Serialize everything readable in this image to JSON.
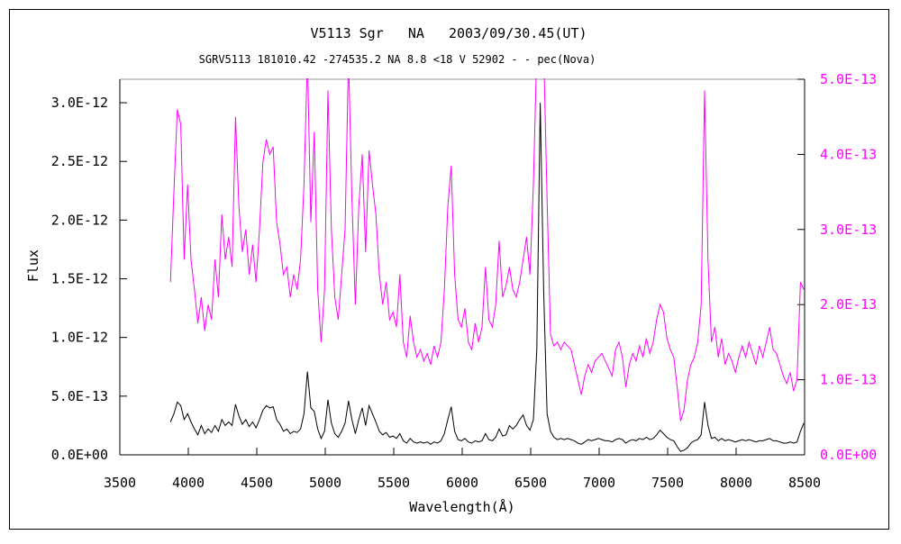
{
  "chart_data": {
    "type": "line",
    "title": "V5113 Sgr   NA   2003/09/30.45(UT)",
    "subtitle": "SGRV5113 181010.42 -274535.2 NA 8.8 <18 V 52902 - - pec(Nova)",
    "xlabel": "Wavelength(Å)",
    "ylabel_left": "Flux",
    "legend": "none",
    "grid": false,
    "x_axis": {
      "min": 3500,
      "max": 8500,
      "ticks": [
        {
          "label": "3500",
          "value": 3500
        },
        {
          "label": "4000",
          "value": 4000
        },
        {
          "label": "4500",
          "value": 4500
        },
        {
          "label": "5000",
          "value": 5000
        },
        {
          "label": "5500",
          "value": 5500
        },
        {
          "label": "6000",
          "value": 6000
        },
        {
          "label": "6500",
          "value": 6500
        },
        {
          "label": "7000",
          "value": 7000
        },
        {
          "label": "7500",
          "value": 7500
        },
        {
          "label": "8000",
          "value": 8000
        },
        {
          "label": "8500",
          "value": 8500
        }
      ]
    },
    "y_axis_left": {
      "min": 0,
      "max": 3.2e-12,
      "color": "#000000",
      "ticks": [
        {
          "label": "0.0E+00",
          "value": 0
        },
        {
          "label": "5.0E-13",
          "value": 5e-13
        },
        {
          "label": "1.0E-12",
          "value": 1e-12
        },
        {
          "label": "1.5E-12",
          "value": 1.5e-12
        },
        {
          "label": "2.0E-12",
          "value": 2e-12
        },
        {
          "label": "2.5E-12",
          "value": 2.5e-12
        },
        {
          "label": "3.0E-12",
          "value": 3e-12
        }
      ]
    },
    "y_axis_right": {
      "min": 0,
      "max": 5e-13,
      "color": "#ff00ff",
      "ticks": [
        {
          "label": "0.0E+00",
          "value": 0
        },
        {
          "label": "1.0E-13",
          "value": 1e-13
        },
        {
          "label": "2.0E-13",
          "value": 2e-13
        },
        {
          "label": "3.0E-13",
          "value": 3e-13
        },
        {
          "label": "4.0E-13",
          "value": 4e-13
        },
        {
          "label": "5.0E-13",
          "value": 5e-13
        }
      ]
    },
    "series": [
      {
        "name": "black",
        "axis": "left",
        "color": "#000000",
        "x_start": 3870,
        "x_step": 25,
        "value_scale": 1e-12,
        "values": [
          0.28,
          0.35,
          0.45,
          0.42,
          0.3,
          0.35,
          0.28,
          0.22,
          0.17,
          0.25,
          0.18,
          0.22,
          0.19,
          0.25,
          0.2,
          0.3,
          0.25,
          0.28,
          0.25,
          0.43,
          0.33,
          0.26,
          0.3,
          0.24,
          0.28,
          0.23,
          0.3,
          0.38,
          0.42,
          0.4,
          0.41,
          0.3,
          0.26,
          0.2,
          0.22,
          0.18,
          0.2,
          0.19,
          0.22,
          0.35,
          0.71,
          0.4,
          0.37,
          0.22,
          0.14,
          0.2,
          0.47,
          0.27,
          0.18,
          0.15,
          0.2,
          0.27,
          0.46,
          0.3,
          0.18,
          0.3,
          0.4,
          0.25,
          0.42,
          0.35,
          0.28,
          0.2,
          0.17,
          0.19,
          0.15,
          0.16,
          0.14,
          0.18,
          0.12,
          0.1,
          0.14,
          0.11,
          0.1,
          0.11,
          0.1,
          0.11,
          0.09,
          0.11,
          0.1,
          0.12,
          0.18,
          0.3,
          0.41,
          0.2,
          0.13,
          0.12,
          0.14,
          0.11,
          0.1,
          0.12,
          0.11,
          0.12,
          0.18,
          0.13,
          0.12,
          0.15,
          0.22,
          0.16,
          0.17,
          0.25,
          0.22,
          0.25,
          0.3,
          0.34,
          0.25,
          0.21,
          0.3,
          0.9,
          3.0,
          1.4,
          0.35,
          0.2,
          0.15,
          0.13,
          0.14,
          0.13,
          0.14,
          0.13,
          0.12,
          0.1,
          0.09,
          0.11,
          0.13,
          0.12,
          0.13,
          0.14,
          0.13,
          0.12,
          0.12,
          0.11,
          0.13,
          0.14,
          0.13,
          0.1,
          0.12,
          0.13,
          0.12,
          0.14,
          0.13,
          0.15,
          0.13,
          0.14,
          0.17,
          0.21,
          0.18,
          0.15,
          0.13,
          0.12,
          0.07,
          0.03,
          0.04,
          0.06,
          0.1,
          0.12,
          0.13,
          0.17,
          0.45,
          0.25,
          0.14,
          0.15,
          0.12,
          0.14,
          0.12,
          0.13,
          0.12,
          0.11,
          0.12,
          0.13,
          0.12,
          0.13,
          0.12,
          0.11,
          0.12,
          0.12,
          0.13,
          0.14,
          0.12,
          0.12,
          0.11,
          0.1,
          0.1,
          0.11,
          0.1,
          0.11,
          0.2,
          0.27
        ]
      },
      {
        "name": "magenta",
        "axis": "right",
        "color": "#ff00ff",
        "x_start": 3870,
        "x_step": 25,
        "value_scale": 1e-13,
        "values": [
          2.3,
          3.5,
          4.6,
          4.4,
          2.6,
          3.6,
          2.6,
          2.2,
          1.75,
          2.1,
          1.65,
          2.0,
          1.8,
          2.6,
          2.1,
          3.2,
          2.6,
          2.9,
          2.5,
          4.5,
          3.3,
          2.7,
          3.0,
          2.4,
          2.8,
          2.3,
          3.0,
          3.9,
          4.2,
          4.0,
          4.1,
          3.1,
          2.8,
          2.4,
          2.5,
          2.1,
          2.4,
          2.2,
          2.6,
          3.6,
          5.3,
          3.1,
          4.3,
          2.2,
          1.5,
          2.2,
          4.85,
          3.0,
          2.1,
          1.8,
          2.4,
          3.0,
          5.3,
          3.4,
          2.0,
          3.3,
          4.0,
          2.7,
          4.05,
          3.6,
          3.2,
          2.4,
          2.0,
          2.3,
          1.8,
          1.9,
          1.7,
          2.4,
          1.5,
          1.3,
          1.85,
          1.5,
          1.3,
          1.4,
          1.25,
          1.35,
          1.2,
          1.45,
          1.3,
          1.5,
          2.2,
          3.3,
          3.85,
          2.4,
          1.8,
          1.7,
          1.95,
          1.5,
          1.4,
          1.75,
          1.5,
          1.7,
          2.5,
          1.8,
          1.7,
          2.0,
          2.85,
          2.1,
          2.25,
          2.5,
          2.2,
          2.1,
          2.3,
          2.6,
          2.9,
          2.4,
          3.6,
          5.4,
          5.4,
          5.4,
          3.4,
          1.6,
          1.45,
          1.5,
          1.4,
          1.5,
          1.45,
          1.4,
          1.2,
          1.0,
          0.8,
          1.05,
          1.2,
          1.1,
          1.25,
          1.3,
          1.35,
          1.25,
          1.15,
          1.05,
          1.4,
          1.5,
          1.3,
          0.9,
          1.2,
          1.35,
          1.25,
          1.45,
          1.3,
          1.55,
          1.35,
          1.5,
          1.8,
          2.0,
          1.9,
          1.55,
          1.4,
          1.3,
          0.9,
          0.45,
          0.6,
          1.0,
          1.2,
          1.3,
          1.5,
          2.0,
          4.85,
          2.6,
          1.5,
          1.7,
          1.3,
          1.55,
          1.2,
          1.35,
          1.25,
          1.1,
          1.3,
          1.45,
          1.3,
          1.5,
          1.35,
          1.2,
          1.45,
          1.3,
          1.5,
          1.7,
          1.4,
          1.35,
          1.2,
          1.05,
          0.95,
          1.1,
          0.85,
          1.0,
          2.3,
          2.2
        ]
      }
    ],
    "layout": {
      "plot_top_border_color": "#999999",
      "axis_color": "#000000",
      "background": "#ffffff"
    }
  }
}
